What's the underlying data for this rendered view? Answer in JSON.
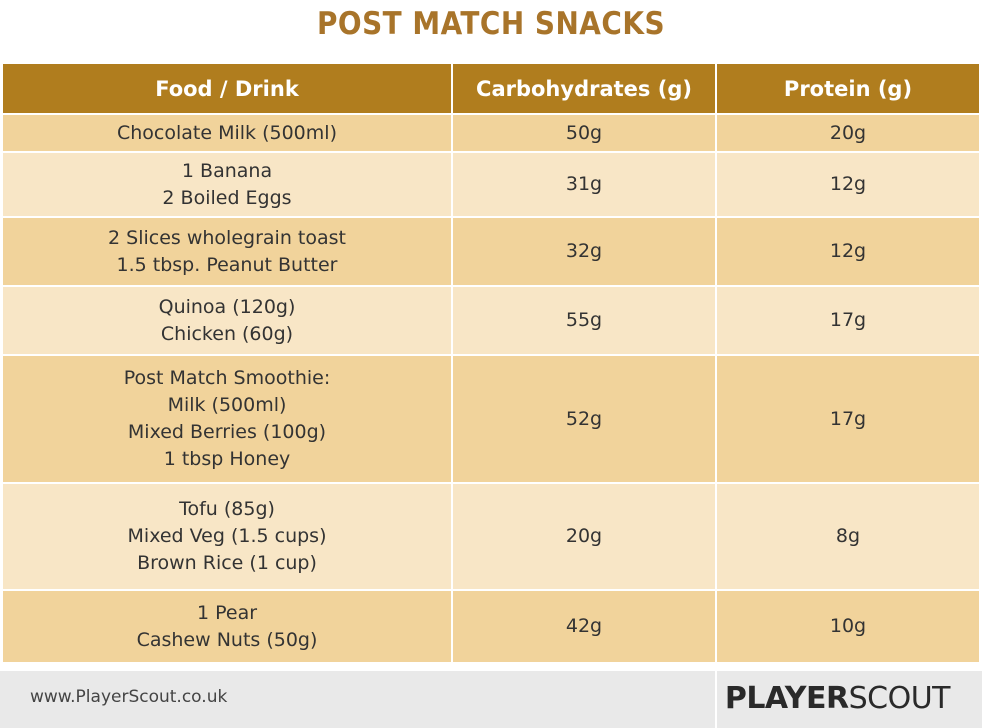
{
  "header": {
    "title": "POST MATCH SNACKS"
  },
  "table": {
    "columns": [
      "Food / Drink",
      "Carbohydrates (g)",
      "Protein (g)"
    ],
    "rows": [
      {
        "food": [
          "Chocolate Milk (500ml)"
        ],
        "carbs": "50g",
        "protein": "20g"
      },
      {
        "food": [
          "1 Banana",
          "2 Boiled Eggs"
        ],
        "carbs": "31g",
        "protein": "12g"
      },
      {
        "food": [
          "2 Slices wholegrain toast",
          "1.5 tbsp. Peanut Butter"
        ],
        "carbs": "32g",
        "protein": "12g"
      },
      {
        "food": [
          "Quinoa (120g)",
          "Chicken (60g)"
        ],
        "carbs": "55g",
        "protein": "17g"
      },
      {
        "food": [
          "Post Match Smoothie:",
          "Milk (500ml)",
          "Mixed Berries (100g)",
          "1 tbsp Honey"
        ],
        "carbs": "52g",
        "protein": "17g"
      },
      {
        "food": [
          "Tofu (85g)",
          "Mixed Veg (1.5 cups)",
          "Brown Rice (1 cup)"
        ],
        "carbs": "20g",
        "protein": "8g"
      },
      {
        "food": [
          "1 Pear",
          "Cashew Nuts (50g)"
        ],
        "carbs": "42g",
        "protein": "10g"
      }
    ]
  },
  "footer": {
    "url": "www.PlayerScout.co.uk",
    "logo_bold": "PLAYER",
    "logo_light": "SCOUT"
  }
}
